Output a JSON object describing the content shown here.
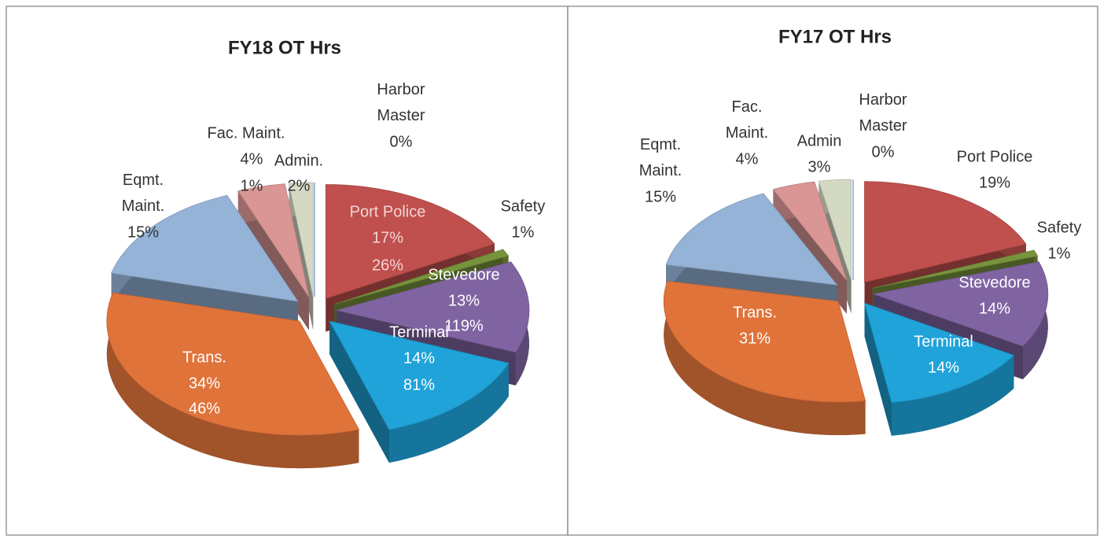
{
  "chart_data": [
    {
      "type": "pie3d",
      "title": "FY18 OT Hrs",
      "categories": [
        "Port Police",
        "Safety",
        "Stevedore",
        "Terminal",
        "Trans.",
        "Eqmt. Maint.",
        "Fac. Maint.",
        "Admin.",
        "Harbor Master"
      ],
      "values": [
        17,
        1,
        13,
        14,
        34,
        15,
        4,
        2,
        0
      ],
      "value_labels": [
        "17%",
        "1%",
        "13%",
        "14%",
        "34%",
        "15%",
        "4%",
        "2%",
        "0%"
      ],
      "colors": [
        "#c0504d",
        "#77933c",
        "#8064a2",
        "#1fa3d9",
        "#e0733a",
        "#95b3d7",
        "#d99694",
        "#d4d9c4",
        "#1f6fc4"
      ],
      "annotations": [
        "26%",
        "119%",
        "81%",
        "46%",
        "1%"
      ]
    },
    {
      "type": "pie3d",
      "title": "FY17 OT Hrs",
      "categories": [
        "Port Police",
        "Safety",
        "Stevedore",
        "Terminal",
        "Trans.",
        "Eqmt. Maint.",
        "Fac. Maint.",
        "Admin",
        "Harbor Master"
      ],
      "values": [
        19,
        1,
        14,
        14,
        31,
        15,
        4,
        3,
        0
      ],
      "value_labels": [
        "19%",
        "1%",
        "14%",
        "14%",
        "31%",
        "15%",
        "4%",
        "3%",
        "0%"
      ],
      "colors": [
        "#c0504d",
        "#77933c",
        "#8064a2",
        "#1fa3d9",
        "#e0733a",
        "#95b3d7",
        "#d99694",
        "#d4d9c4",
        "#1f6fc4"
      ]
    }
  ]
}
